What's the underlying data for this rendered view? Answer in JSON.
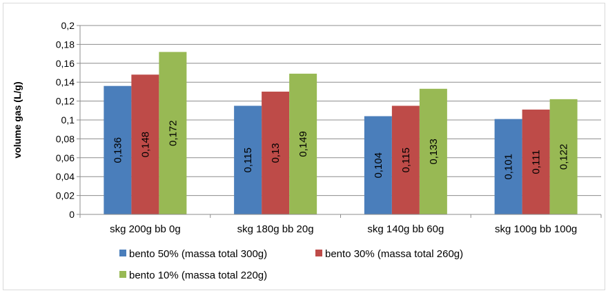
{
  "chart_data": {
    "type": "bar",
    "title": "",
    "xlabel": "",
    "ylabel": "volume gas (L/g)",
    "ylim": [
      0,
      0.2
    ],
    "y_ticks": [
      "0",
      "0,02",
      "0,04",
      "0,06",
      "0,08",
      "0,1",
      "0,12",
      "0,14",
      "0,16",
      "0,18",
      "0,2"
    ],
    "grid": true,
    "legend_position": "bottom",
    "categories": [
      "skg 200g bb 0g",
      "skg 180g bb 20g",
      "skg 140g bb 60g",
      "skg 100g bb 100g"
    ],
    "series": [
      {
        "name": "bento 50% (massa total 300g)",
        "color": "#4a7ebb",
        "values": [
          0.136,
          0.115,
          0.104,
          0.101
        ],
        "labels": [
          "0,136",
          "0,115",
          "0,104",
          "0,101"
        ]
      },
      {
        "name": "bento 30% (massa total 260g)",
        "color": "#be4b48",
        "values": [
          0.148,
          0.13,
          0.115,
          0.111
        ],
        "labels": [
          "0,148",
          "0,13",
          "0,115",
          "0,111"
        ]
      },
      {
        "name": "bento 10% (massa total 220g)",
        "color": "#98b954",
        "values": [
          0.172,
          0.149,
          0.133,
          0.122
        ],
        "labels": [
          "0,172",
          "0,149",
          "0,133",
          "0,122"
        ]
      }
    ]
  }
}
